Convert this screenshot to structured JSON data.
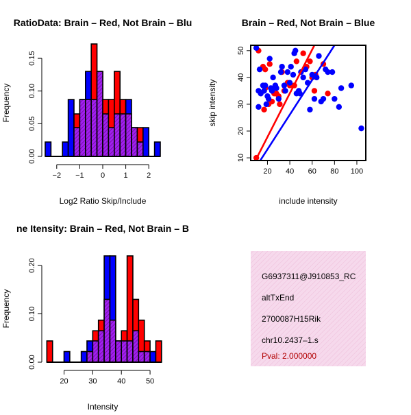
{
  "colors": {
    "red": "#ff0000",
    "blue": "#0000ff",
    "purple": "#a020f0",
    "stripe": "#6a0a8a",
    "info_bg": "#f6d9ec",
    "pval": "#b20000"
  },
  "chart_data": [
    {
      "type": "bar",
      "title": "RatioData: Brain – Red, Not Brain – Blu",
      "xlabel": "Log2 Ratio Skip/Include",
      "ylabel": "Frequency",
      "xlim": [
        -2.5,
        2.5
      ],
      "ylim": [
        0,
        0.17
      ],
      "xticks": [
        -2,
        -1,
        0,
        1,
        2
      ],
      "yticks": [
        0.0,
        0.05,
        0.1,
        0.15
      ],
      "bin_edges": [
        -2.5,
        -2.25,
        -2.0,
        -1.75,
        -1.5,
        -1.25,
        -1.0,
        -0.75,
        -0.5,
        -0.25,
        0.0,
        0.25,
        0.5,
        0.75,
        1.0,
        1.25,
        1.5,
        1.75,
        2.0,
        2.25,
        2.5
      ],
      "series": [
        {
          "name": "Brain",
          "color": "red",
          "values": [
            0,
            0,
            0,
            0,
            0,
            0.065,
            0.087,
            0.087,
            0.172,
            0.13,
            0.087,
            0.087,
            0.13,
            0.087,
            0.065,
            0.044,
            0.044,
            0,
            0,
            0
          ]
        },
        {
          "name": "Not Brain",
          "color": "blue",
          "values": [
            0.022,
            0,
            0,
            0.022,
            0.087,
            0.044,
            0.087,
            0.13,
            0.087,
            0.13,
            0.065,
            0.044,
            0.065,
            0.065,
            0.087,
            0.044,
            0.022,
            0.044,
            0,
            0.022
          ]
        }
      ]
    },
    {
      "type": "scatter",
      "title": "Brain – Red, Not Brain – Blue",
      "xlabel": "include intensity",
      "ylabel": "skip intensity",
      "xlim": [
        5,
        108
      ],
      "ylim": [
        9,
        52
      ],
      "xticks": [
        20,
        40,
        60,
        80,
        100
      ],
      "yticks": [
        10,
        20,
        30,
        40,
        50
      ],
      "lines": [
        {
          "name": "Brain fit",
          "color": "red",
          "points": [
            [
              8,
              8
            ],
            [
              62,
              52
            ]
          ]
        },
        {
          "name": "Not Brain fit",
          "color": "blue",
          "points": [
            [
              12,
              8
            ],
            [
              80,
              52
            ]
          ]
        }
      ],
      "series": [
        {
          "name": "Brain",
          "color": "red",
          "points": [
            [
              12,
              50
            ],
            [
              16,
              44
            ],
            [
              18,
              43
            ],
            [
              22,
              45
            ],
            [
              10,
              10
            ],
            [
              17,
              28
            ],
            [
              21,
              30
            ],
            [
              26,
              34
            ],
            [
              28,
              34
            ],
            [
              31,
              30
            ],
            [
              30,
              33
            ],
            [
              35,
              35
            ],
            [
              38,
              38
            ],
            [
              40,
              37
            ],
            [
              44,
              37
            ],
            [
              46,
              46
            ],
            [
              52,
              49
            ],
            [
              55,
              44
            ],
            [
              58,
              46
            ],
            [
              60,
              40
            ],
            [
              62,
              35
            ],
            [
              63,
              41
            ],
            [
              70,
              45
            ],
            [
              74,
              34
            ],
            [
              18,
              36
            ],
            [
              24,
              31
            ],
            [
              33,
              42
            ]
          ]
        },
        {
          "name": "Not Brain",
          "color": "blue",
          "points": [
            [
              10,
              51
            ],
            [
              13,
              43
            ],
            [
              12,
              35
            ],
            [
              14,
              34
            ],
            [
              12,
              29
            ],
            [
              16,
              37
            ],
            [
              17,
              35
            ],
            [
              18,
              37
            ],
            [
              20,
              33
            ],
            [
              21,
              32
            ],
            [
              19,
              30
            ],
            [
              22,
              47
            ],
            [
              23,
              36
            ],
            [
              24,
              35
            ],
            [
              25,
              40
            ],
            [
              27,
              37
            ],
            [
              28,
              36
            ],
            [
              30,
              32
            ],
            [
              32,
              42
            ],
            [
              33,
              44
            ],
            [
              35,
              37
            ],
            [
              36,
              35
            ],
            [
              38,
              42
            ],
            [
              40,
              38
            ],
            [
              41,
              44
            ],
            [
              43,
              41
            ],
            [
              44,
              49
            ],
            [
              45,
              50
            ],
            [
              46,
              34
            ],
            [
              48,
              35
            ],
            [
              49,
              34
            ],
            [
              50,
              42
            ],
            [
              52,
              40
            ],
            [
              54,
              43
            ],
            [
              56,
              38
            ],
            [
              58,
              28
            ],
            [
              60,
              41
            ],
            [
              62,
              32
            ],
            [
              64,
              40
            ],
            [
              66,
              48
            ],
            [
              68,
              31
            ],
            [
              70,
              32
            ],
            [
              72,
              43
            ],
            [
              74,
              42
            ],
            [
              78,
              42
            ],
            [
              80,
              32
            ],
            [
              84,
              29
            ],
            [
              86,
              36
            ],
            [
              95,
              37
            ],
            [
              104,
              21
            ]
          ]
        }
      ]
    },
    {
      "type": "bar",
      "title": "ne Itensity: Brain – Red, Not Brain – B",
      "xlabel": "Intensity",
      "ylabel": "Frequency",
      "xlim": [
        12,
        55
      ],
      "ylim": [
        0,
        0.23
      ],
      "xticks": [
        20,
        30,
        40,
        50
      ],
      "yticks": [
        0.0,
        0.1,
        0.2
      ],
      "bin_edges": [
        14,
        16,
        18,
        20,
        22,
        24,
        26,
        28,
        30,
        32,
        34,
        36,
        38,
        40,
        42,
        44,
        46,
        48,
        50,
        52,
        54
      ],
      "series": [
        {
          "name": "Brain",
          "color": "red",
          "values": [
            0.044,
            0,
            0,
            0,
            0,
            0,
            0,
            0.022,
            0.065,
            0.087,
            0.13,
            0.087,
            0.044,
            0.065,
            0.22,
            0.13,
            0.087,
            0.044,
            0,
            0.044
          ]
        },
        {
          "name": "Not Brain",
          "color": "blue",
          "values": [
            0,
            0,
            0,
            0.022,
            0,
            0,
            0.022,
            0.044,
            0.044,
            0.065,
            0.22,
            0.22,
            0.044,
            0.044,
            0.044,
            0.065,
            0.022,
            0.022,
            0.022,
            0
          ]
        }
      ]
    }
  ],
  "info": {
    "line1": "G6937311@J910853_RC",
    "line2": "altTxEnd",
    "line3": "2700087H15Rik",
    "line4": "chr10.2437–1.s",
    "pval": "Pval: 2.000000"
  }
}
